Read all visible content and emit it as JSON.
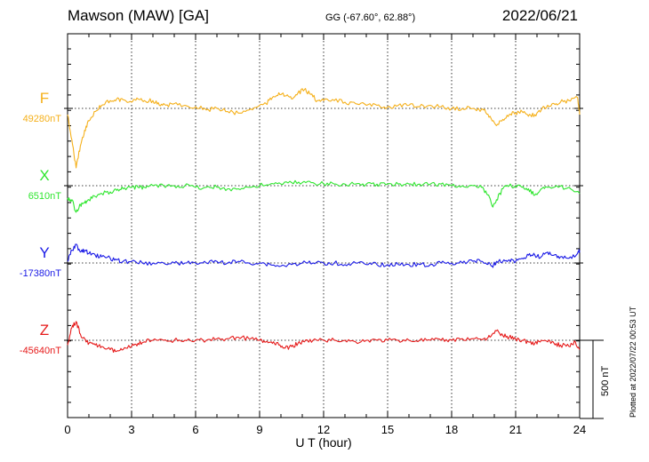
{
  "header": {
    "station": "Mawson (MAW)  [GA]",
    "coords": "GG (-67.60°,  62.88°)",
    "date": "2022/06/21"
  },
  "side_note": "Plotted at 2022/07/22 00:53 UT",
  "chart_data": {
    "type": "line",
    "xlabel": "U T (hour)",
    "x_ticks": [
      0,
      3,
      6,
      9,
      12,
      15,
      18,
      21,
      24
    ],
    "xlim": [
      0,
      24
    ],
    "scale_bar": {
      "value_nT": 500,
      "label": "500 nT"
    },
    "grid": true,
    "series": [
      {
        "name": "F",
        "baseline_label": "49280nT",
        "baseline_nT": 49280,
        "color": "#f5b01a",
        "points": [
          [
            0,
            49240
          ],
          [
            0.2,
            49080
          ],
          [
            0.4,
            48900
          ],
          [
            0.6,
            49040
          ],
          [
            0.8,
            49140
          ],
          [
            1,
            49200
          ],
          [
            1.3,
            49260
          ],
          [
            1.6,
            49300
          ],
          [
            2,
            49330
          ],
          [
            2.3,
            49340
          ],
          [
            2.6,
            49335
          ],
          [
            3,
            49320
          ],
          [
            3.3,
            49340
          ],
          [
            3.6,
            49330
          ],
          [
            4,
            49330
          ],
          [
            4.3,
            49300
          ],
          [
            4.6,
            49300
          ],
          [
            5,
            49310
          ],
          [
            5.5,
            49300
          ],
          [
            6,
            49290
          ],
          [
            6.5,
            49270
          ],
          [
            7,
            49280
          ],
          [
            7.5,
            49260
          ],
          [
            8,
            49250
          ],
          [
            8.5,
            49270
          ],
          [
            9,
            49300
          ],
          [
            9.3,
            49310
          ],
          [
            9.6,
            49350
          ],
          [
            9.9,
            49380
          ],
          [
            10.2,
            49360
          ],
          [
            10.5,
            49340
          ],
          [
            10.8,
            49380
          ],
          [
            11.1,
            49400
          ],
          [
            11.4,
            49370
          ],
          [
            11.7,
            49330
          ],
          [
            12,
            49330
          ],
          [
            12.5,
            49330
          ],
          [
            13,
            49320
          ],
          [
            13.5,
            49310
          ],
          [
            14,
            49300
          ],
          [
            14.5,
            49300
          ],
          [
            15,
            49290
          ],
          [
            15.5,
            49300
          ],
          [
            16,
            49300
          ],
          [
            16.5,
            49290
          ],
          [
            17,
            49300
          ],
          [
            17.5,
            49290
          ],
          [
            18,
            49280
          ],
          [
            18.5,
            49280
          ],
          [
            19,
            49280
          ],
          [
            19.5,
            49270
          ],
          [
            19.8,
            49230
          ],
          [
            20.1,
            49170
          ],
          [
            20.4,
            49210
          ],
          [
            20.7,
            49240
          ],
          [
            21,
            49250
          ],
          [
            21.3,
            49260
          ],
          [
            21.6,
            49230
          ],
          [
            21.9,
            49240
          ],
          [
            22.2,
            49270
          ],
          [
            22.5,
            49300
          ],
          [
            22.8,
            49310
          ],
          [
            23.1,
            49320
          ],
          [
            23.5,
            49330
          ],
          [
            23.9,
            49350
          ],
          [
            24,
            49240
          ]
        ]
      },
      {
        "name": "X",
        "baseline_label": "6510nT",
        "baseline_nT": 6510,
        "color": "#2ee62e",
        "points": [
          [
            0,
            6430
          ],
          [
            0.2,
            6420
          ],
          [
            0.4,
            6340
          ],
          [
            0.6,
            6390
          ],
          [
            0.8,
            6400
          ],
          [
            1,
            6420
          ],
          [
            1.3,
            6440
          ],
          [
            1.6,
            6460
          ],
          [
            2,
            6470
          ],
          [
            2.3,
            6480
          ],
          [
            2.6,
            6490
          ],
          [
            3,
            6500
          ],
          [
            3.3,
            6500
          ],
          [
            3.6,
            6500
          ],
          [
            4,
            6510
          ],
          [
            4.5,
            6510
          ],
          [
            5,
            6510
          ],
          [
            5.5,
            6510
          ],
          [
            6,
            6500
          ],
          [
            6.5,
            6500
          ],
          [
            7,
            6500
          ],
          [
            7.5,
            6490
          ],
          [
            8,
            6490
          ],
          [
            8.5,
            6500
          ],
          [
            9,
            6510
          ],
          [
            9.5,
            6520
          ],
          [
            10,
            6520
          ],
          [
            10.5,
            6530
          ],
          [
            11,
            6530
          ],
          [
            11.5,
            6530
          ],
          [
            12,
            6520
          ],
          [
            12.5,
            6520
          ],
          [
            13,
            6520
          ],
          [
            13.5,
            6520
          ],
          [
            14,
            6520
          ],
          [
            14.5,
            6520
          ],
          [
            15,
            6520
          ],
          [
            15.5,
            6520
          ],
          [
            16,
            6520
          ],
          [
            16.5,
            6520
          ],
          [
            17,
            6520
          ],
          [
            17.5,
            6520
          ],
          [
            18,
            6510
          ],
          [
            18.5,
            6510
          ],
          [
            19,
            6510
          ],
          [
            19.4,
            6500
          ],
          [
            19.7,
            6450
          ],
          [
            19.9,
            6380
          ],
          [
            20.1,
            6420
          ],
          [
            20.4,
            6490
          ],
          [
            20.7,
            6510
          ],
          [
            21,
            6510
          ],
          [
            21.3,
            6500
          ],
          [
            21.6,
            6490
          ],
          [
            21.9,
            6450
          ],
          [
            22.2,
            6490
          ],
          [
            22.5,
            6500
          ],
          [
            23,
            6500
          ],
          [
            23.5,
            6500
          ],
          [
            24,
            6460
          ]
        ]
      },
      {
        "name": "Y",
        "baseline_label": "-17380nT",
        "baseline_nT": -17380,
        "color": "#1a1ae6",
        "points": [
          [
            0,
            -17370
          ],
          [
            0.2,
            -17300
          ],
          [
            0.4,
            -17260
          ],
          [
            0.6,
            -17310
          ],
          [
            0.8,
            -17300
          ],
          [
            1,
            -17320
          ],
          [
            1.3,
            -17330
          ],
          [
            1.6,
            -17340
          ],
          [
            2,
            -17350
          ],
          [
            2.3,
            -17360
          ],
          [
            2.6,
            -17370
          ],
          [
            3,
            -17370
          ],
          [
            3.5,
            -17380
          ],
          [
            4,
            -17380
          ],
          [
            4.5,
            -17380
          ],
          [
            5,
            -17380
          ],
          [
            5.5,
            -17380
          ],
          [
            6,
            -17380
          ],
          [
            6.5,
            -17380
          ],
          [
            7,
            -17370
          ],
          [
            7.5,
            -17380
          ],
          [
            8,
            -17370
          ],
          [
            8.5,
            -17380
          ],
          [
            9,
            -17380
          ],
          [
            9.5,
            -17390
          ],
          [
            10,
            -17400
          ],
          [
            10.5,
            -17390
          ],
          [
            11,
            -17380
          ],
          [
            11.5,
            -17380
          ],
          [
            12,
            -17380
          ],
          [
            12.5,
            -17380
          ],
          [
            13,
            -17390
          ],
          [
            13.5,
            -17380
          ],
          [
            14,
            -17390
          ],
          [
            14.5,
            -17390
          ],
          [
            15,
            -17390
          ],
          [
            15.5,
            -17390
          ],
          [
            16,
            -17390
          ],
          [
            16.5,
            -17390
          ],
          [
            17,
            -17390
          ],
          [
            17.5,
            -17380
          ],
          [
            18,
            -17380
          ],
          [
            18.5,
            -17380
          ],
          [
            19,
            -17370
          ],
          [
            19.3,
            -17360
          ],
          [
            19.6,
            -17380
          ],
          [
            19.9,
            -17400
          ],
          [
            20.1,
            -17370
          ],
          [
            20.4,
            -17370
          ],
          [
            20.7,
            -17360
          ],
          [
            21,
            -17370
          ],
          [
            21.3,
            -17350
          ],
          [
            21.6,
            -17330
          ],
          [
            21.9,
            -17330
          ],
          [
            22.2,
            -17340
          ],
          [
            22.5,
            -17310
          ],
          [
            22.8,
            -17330
          ],
          [
            23.1,
            -17340
          ],
          [
            23.5,
            -17350
          ],
          [
            23.9,
            -17320
          ],
          [
            24,
            -17300
          ]
        ]
      },
      {
        "name": "Z",
        "baseline_label": "-45640nT",
        "baseline_nT": -45640,
        "color": "#e61a1a",
        "points": [
          [
            0,
            -45670
          ],
          [
            0.2,
            -45560
          ],
          [
            0.4,
            -45520
          ],
          [
            0.6,
            -45600
          ],
          [
            0.8,
            -45630
          ],
          [
            1,
            -45660
          ],
          [
            1.3,
            -45670
          ],
          [
            1.6,
            -45680
          ],
          [
            2,
            -45700
          ],
          [
            2.3,
            -45710
          ],
          [
            2.6,
            -45700
          ],
          [
            3,
            -45680
          ],
          [
            3.3,
            -45660
          ],
          [
            3.6,
            -45650
          ],
          [
            4,
            -45640
          ],
          [
            4.5,
            -45640
          ],
          [
            5,
            -45640
          ],
          [
            5.5,
            -45640
          ],
          [
            6,
            -45640
          ],
          [
            6.5,
            -45640
          ],
          [
            7,
            -45630
          ],
          [
            7.5,
            -45630
          ],
          [
            8,
            -45620
          ],
          [
            8.5,
            -45630
          ],
          [
            9,
            -45640
          ],
          [
            9.3,
            -45650
          ],
          [
            9.6,
            -45660
          ],
          [
            9.9,
            -45670
          ],
          [
            10.2,
            -45690
          ],
          [
            10.5,
            -45680
          ],
          [
            10.8,
            -45660
          ],
          [
            11.1,
            -45650
          ],
          [
            11.5,
            -45640
          ],
          [
            12,
            -45640
          ],
          [
            12.5,
            -45640
          ],
          [
            13,
            -45640
          ],
          [
            13.5,
            -45650
          ],
          [
            14,
            -45640
          ],
          [
            14.5,
            -45640
          ],
          [
            15,
            -45640
          ],
          [
            15.5,
            -45640
          ],
          [
            16,
            -45640
          ],
          [
            16.5,
            -45640
          ],
          [
            17,
            -45640
          ],
          [
            17.5,
            -45640
          ],
          [
            18,
            -45640
          ],
          [
            18.5,
            -45630
          ],
          [
            19,
            -45630
          ],
          [
            19.5,
            -45630
          ],
          [
            19.8,
            -45620
          ],
          [
            20.1,
            -45580
          ],
          [
            20.4,
            -45610
          ],
          [
            20.7,
            -45620
          ],
          [
            21,
            -45630
          ],
          [
            21.3,
            -45640
          ],
          [
            21.6,
            -45650
          ],
          [
            21.9,
            -45660
          ],
          [
            22.2,
            -45640
          ],
          [
            22.5,
            -45650
          ],
          [
            22.8,
            -45660
          ],
          [
            23.1,
            -45670
          ],
          [
            23.5,
            -45680
          ],
          [
            23.8,
            -45650
          ],
          [
            24,
            -45700
          ]
        ]
      }
    ]
  }
}
